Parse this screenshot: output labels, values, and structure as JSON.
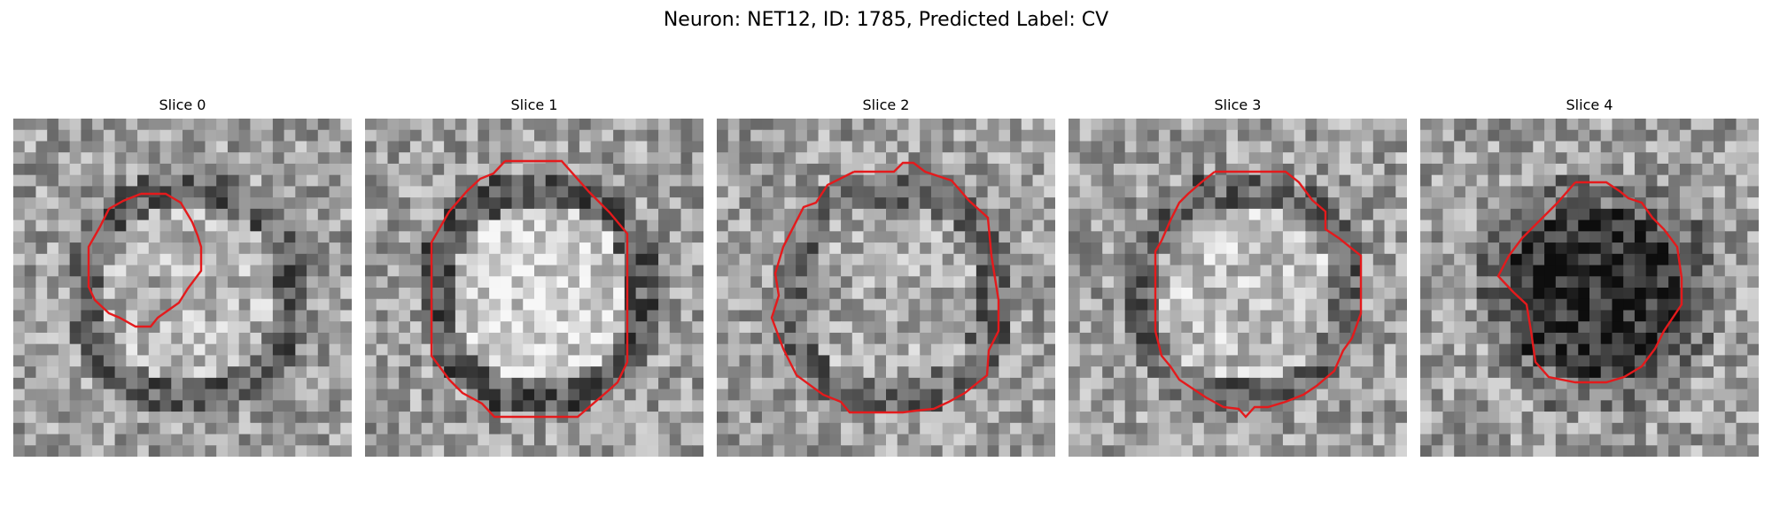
{
  "figure": {
    "title": "Neuron: NET12, ID: 1785, Predicted Label: CV"
  },
  "colors": {
    "contour": "#e41a1c",
    "background": "#ffffff"
  },
  "panels": [
    {
      "title": "Slice 0",
      "seed": 11,
      "center_tone": 0.7,
      "ring_tone": 0.38,
      "blob_dark": false
    },
    {
      "title": "Slice 1",
      "seed": 23,
      "center_tone": 0.82,
      "ring_tone": 0.35,
      "blob_dark": false
    },
    {
      "title": "Slice 2",
      "seed": 37,
      "center_tone": 0.66,
      "ring_tone": 0.42,
      "blob_dark": false
    },
    {
      "title": "Slice 3",
      "seed": 51,
      "center_tone": 0.74,
      "ring_tone": 0.4,
      "blob_dark": false
    },
    {
      "title": "Slice 4",
      "seed": 67,
      "center_tone": 0.2,
      "ring_tone": 0.45,
      "blob_dark": true
    }
  ]
}
